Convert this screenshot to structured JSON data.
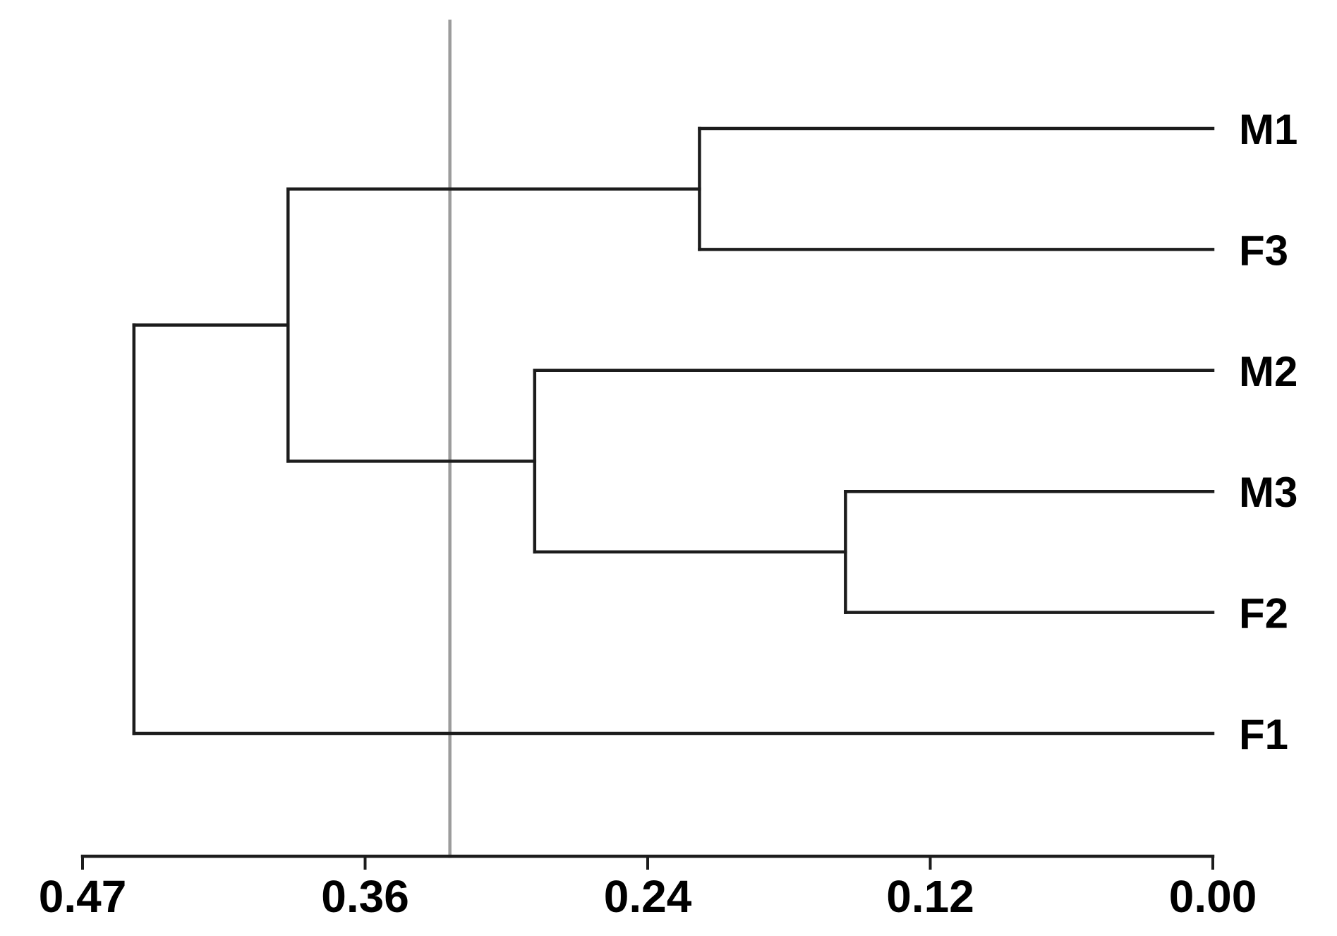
{
  "figure": {
    "background": "#ffffff"
  },
  "chart_data": {
    "type": "dendrogram",
    "orientation": "horizontal, leaves on right, distance decreasing to the right",
    "title": "",
    "leaf_order": [
      "M1",
      "F3",
      "M2",
      "M3",
      "F2",
      "F1"
    ],
    "merges": [
      {
        "id": "C1",
        "a": "M1",
        "b": "F3",
        "distance": 0.218
      },
      {
        "id": "C2",
        "a": "M3",
        "b": "F2",
        "distance": 0.156
      },
      {
        "id": "C3",
        "a": "M2",
        "b": "C2",
        "distance": 0.288
      },
      {
        "id": "C4",
        "a": "C1",
        "b": "C3",
        "distance": 0.39
      },
      {
        "id": "C5",
        "a": "C4",
        "b": "F1",
        "distance": 0.45
      }
    ],
    "cut_line": {
      "distance": 0.324
    },
    "axis": {
      "side": "bottom",
      "tick_values": [
        0.47,
        0.36,
        0.24,
        0.12,
        0.0
      ],
      "tick_labels": [
        "0.47",
        "0.36",
        "0.24",
        "0.12",
        "0.00"
      ],
      "min": 0.0,
      "max": 0.47,
      "grid": false
    },
    "colors": {
      "branch": "#1c1c1c",
      "axis": "#1c1c1c",
      "cut_line": "#9c9c9c",
      "text": "#000000"
    }
  }
}
